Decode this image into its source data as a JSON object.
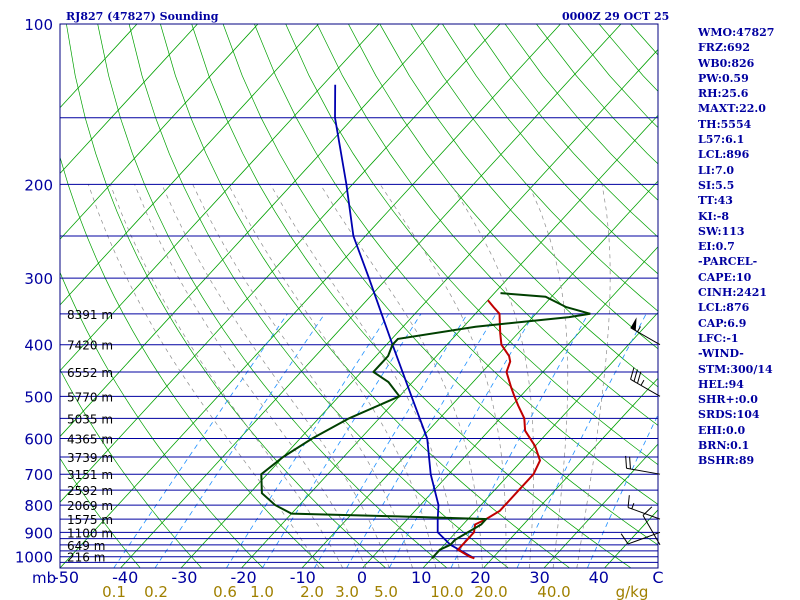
{
  "header": {
    "station": "RJ827 (47827) Sounding",
    "time": "0000Z 29 OCT 25"
  },
  "indices": [
    "WMO:47827",
    "FRZ:692",
    "WB0:826",
    "PW:0.59",
    "RH:25.6",
    "MAXT:22.0",
    "TH:5554",
    "L57:6.1",
    "LCL:896",
    "LI:7.0",
    "SI:5.5",
    "TT:43",
    "KI:-8",
    "SW:113",
    "EI:0.7",
    "-PARCEL-",
    "CAPE:10",
    "CINH:2421",
    "LCL:876",
    "CAP:6.9",
    "LFC:-1",
    "-WIND-",
    "STM:300/14",
    "HEL:94",
    "SHR+:0.0",
    "SRDS:104",
    "EHI:0.0",
    "BRN:0.1",
    "BSHR:89"
  ],
  "chart_data": {
    "type": "line",
    "title": "RJ827 (47827) Sounding",
    "subtitle": "0000Z 29 OCT 25",
    "y_scale": "log (skew-T)",
    "ylim": [
      1000,
      100
    ],
    "xlim": [
      -50,
      50
    ],
    "y_ticks": [
      "100",
      "200",
      "300",
      "400",
      "500",
      "600",
      "700",
      "800",
      "900",
      "1000"
    ],
    "y_axis_unit": "mb",
    "x_ticks": [
      "-50",
      "-40",
      "-30",
      "-20",
      "-10",
      "0",
      "10",
      "20",
      "30",
      "40",
      "C"
    ],
    "mixing_ratio_labels": [
      "0.1",
      "0.2",
      "0.6",
      "1.0",
      "2.0",
      "3.0",
      "5.0",
      "10.0",
      "20.0",
      "40.0",
      "g/kg"
    ],
    "height_labels": [
      {
        "p": 1000,
        "text": "216 m"
      },
      {
        "p": 950,
        "text": "649 m"
      },
      {
        "p": 900,
        "text": "1100 m"
      },
      {
        "p": 850,
        "text": "1575 m"
      },
      {
        "p": 800,
        "text": "2069 m"
      },
      {
        "p": 750,
        "text": "2592 m"
      },
      {
        "p": 700,
        "text": "3151 m"
      },
      {
        "p": 650,
        "text": "3739 m"
      },
      {
        "p": 600,
        "text": "4365 m"
      },
      {
        "p": 550,
        "text": "5035 m"
      },
      {
        "p": 500,
        "text": "5770 m"
      },
      {
        "p": 450,
        "text": "6552 m"
      },
      {
        "p": 400,
        "text": "7420 m"
      },
      {
        "p": 350,
        "text": "8391 m"
      }
    ],
    "series": [
      {
        "values": [
          [
            1007,
            17
          ],
          [
            1000,
            16
          ],
          [
            970,
            13
          ],
          [
            930,
            13
          ],
          [
            900,
            13
          ],
          [
            870,
            12
          ],
          [
            850,
            13
          ],
          [
            820,
            14
          ],
          [
            800,
            14
          ],
          [
            760,
            14
          ],
          [
            700,
            14
          ],
          [
            660,
            13
          ],
          [
            620,
            10
          ],
          [
            580,
            6
          ],
          [
            550,
            4
          ],
          [
            520,
            1
          ],
          [
            500,
            -1
          ],
          [
            480,
            -3
          ],
          [
            450,
            -6
          ],
          [
            430,
            -7
          ],
          [
            420,
            -8
          ],
          [
            400,
            -11
          ],
          [
            380,
            -13
          ],
          [
            350,
            -16
          ],
          [
            340,
            -18
          ],
          [
            330,
            -20
          ]
        ]
      },
      {
        "values": [
          [
            1007,
            10
          ],
          [
            990,
            10
          ],
          [
            970,
            10
          ],
          [
            950,
            11
          ],
          [
            930,
            11
          ],
          [
            900,
            12
          ],
          [
            870,
            13
          ],
          [
            850,
            13
          ],
          [
            840,
            -2
          ],
          [
            830,
            -20
          ],
          [
            800,
            -24
          ],
          [
            760,
            -28
          ],
          [
            700,
            -31
          ],
          [
            650,
            -30
          ],
          [
            600,
            -28
          ],
          [
            550,
            -25
          ],
          [
            500,
            -20
          ],
          [
            470,
            -24
          ],
          [
            450,
            -28
          ],
          [
            420,
            -28
          ],
          [
            400,
            -29
          ],
          [
            390,
            -29
          ],
          [
            370,
            -18
          ],
          [
            355,
            -4
          ],
          [
            350,
            -1
          ],
          [
            340,
            -6
          ],
          [
            325,
            -11
          ],
          [
            320,
            -19
          ]
        ]
      },
      {
        "values": [
          [
            1007,
            17
          ],
          [
            950,
            11
          ],
          [
            900,
            7
          ],
          [
            850,
            5
          ],
          [
            800,
            3
          ],
          [
            700,
            -3
          ],
          [
            600,
            -9
          ],
          [
            500,
            -18
          ],
          [
            400,
            -29
          ],
          [
            300,
            -43
          ],
          [
            250,
            -52
          ],
          [
            200,
            -61
          ],
          [
            150,
            -73
          ],
          [
            130,
            -78
          ]
        ]
      }
    ],
    "wind_barbs": [
      {
        "p": 950,
        "dir": 330,
        "spd": 10
      },
      {
        "p": 900,
        "dir": 250,
        "spd": 10
      },
      {
        "p": 850,
        "dir": 290,
        "spd": 15
      },
      {
        "p": 700,
        "dir": 280,
        "spd": 20
      },
      {
        "p": 500,
        "dir": 300,
        "spd": 35
      },
      {
        "p": 400,
        "dir": 300,
        "spd": 55
      }
    ],
    "colors": {
      "frame": "#000080",
      "isobar": "#0000a0",
      "isotherm": "#00a000",
      "dry_adiabat": "#00a000",
      "moist_adiabat": "#8c8c8c",
      "mixing_ratio": "#1e90ff",
      "temperature": "#c00000",
      "dewpoint": "#004000",
      "parcel": "#0000b0",
      "label": "#0000a0",
      "mr_label": "#a08000"
    }
  }
}
